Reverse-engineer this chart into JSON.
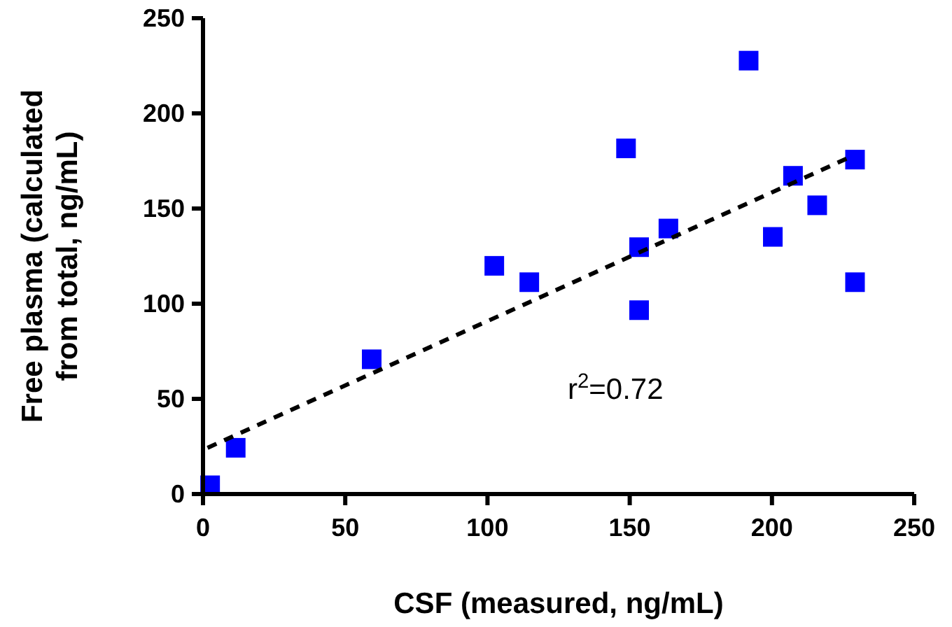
{
  "chart_data": {
    "type": "scatter",
    "xlabel": "CSF (measured, ng/mL)",
    "ylabel": "Free plasma (calculated from total, ng/mL)",
    "xlim": [
      0,
      250
    ],
    "ylim": [
      0,
      250
    ],
    "xticks": [
      0,
      50,
      100,
      150,
      200,
      250
    ],
    "yticks": [
      0,
      50,
      100,
      150,
      200,
      250
    ],
    "grid": false,
    "annotations": [
      "r$^{2}$=0.72"
    ],
    "series": [
      {
        "color": "#0000ff",
        "marker": "square",
        "x": [
          2.5,
          11.5,
          59.3,
          102.4,
          114.7,
          148.7,
          153.3,
          153.3,
          163.6,
          191.8,
          200.3,
          207.4,
          215.9,
          229.2,
          229.2
        ],
        "values": [
          4.6,
          24.3,
          70.8,
          119.9,
          111.3,
          181.6,
          129.7,
          96.6,
          139.5,
          227.7,
          135.1,
          167.2,
          151.7,
          175.7,
          111.3
        ]
      },
      {
        "type": "line",
        "color": "#000000",
        "line_style": "dashed",
        "x": [
          1.6,
          226.2
        ],
        "values": [
          24.3,
          176.2
        ]
      }
    ]
  }
}
